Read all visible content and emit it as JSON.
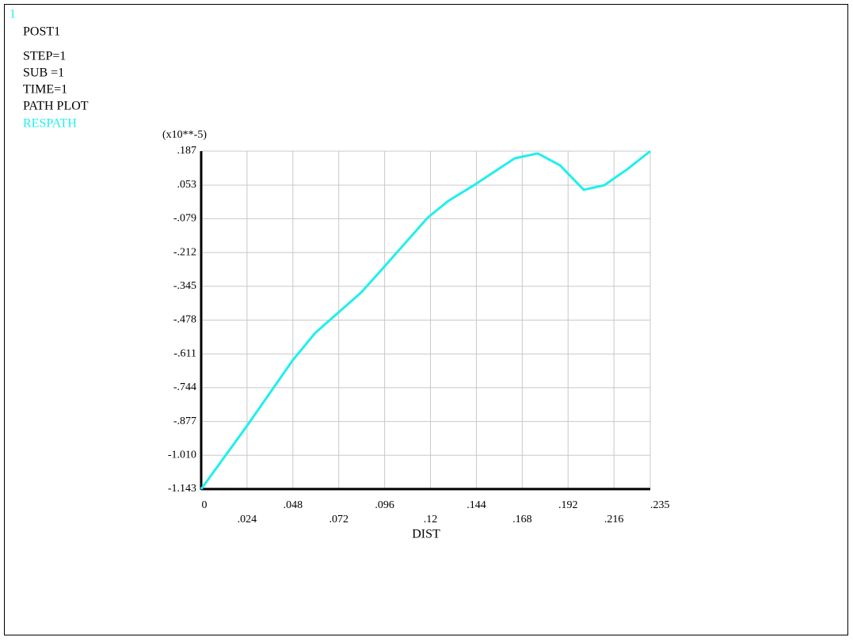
{
  "chart_data": {
    "type": "line",
    "window_label": "1",
    "title": "POST1",
    "annotations": [
      "STEP=1",
      "SUB =1",
      "TIME=1",
      "PATH PLOT"
    ],
    "y_multiplier": "(x10**-5)",
    "xlabel": "DIST",
    "x": [
      0,
      0.024,
      0.048,
      0.0596,
      0.0836,
      0.0958,
      0.1185,
      0.1293,
      0.1434,
      0.1641,
      0.1762,
      0.1878,
      0.2002,
      0.211,
      0.223,
      0.235
    ],
    "series": [
      {
        "name": "RESPATH",
        "color": "#22eeee",
        "values": [
          -1.143,
          -0.894,
          -0.635,
          -0.529,
          -0.37,
          -0.268,
          -0.075,
          -0.009,
          0.056,
          0.159,
          0.178,
          0.131,
          0.035,
          0.053,
          0.116,
          0.187
        ]
      }
    ],
    "xlim": [
      0,
      0.235
    ],
    "ylim": [
      -1.143,
      0.187
    ],
    "xticks": [
      0,
      {
        "value": 0.024,
        "label": ".024"
      },
      {
        "value": 0.048,
        "label": ".048"
      },
      {
        "value": 0.072,
        "label": ".072"
      },
      {
        "value": 0.096,
        "label": ".096"
      },
      {
        "value": 0.12,
        "label": ".12"
      },
      {
        "value": 0.144,
        "label": ".144"
      },
      {
        "value": 0.168,
        "label": ".168"
      },
      {
        "value": 0.192,
        "label": ".192"
      },
      {
        "value": 0.216,
        "label": ".216"
      },
      {
        "value": 0.235,
        "label": ".235"
      }
    ],
    "yticks": [
      {
        "value": 0.187,
        "label": ".187"
      },
      {
        "value": 0.053,
        "label": ".053"
      },
      {
        "value": -0.079,
        "label": "-.079"
      },
      {
        "value": -0.212,
        "label": "-.212"
      },
      {
        "value": -0.345,
        "label": "-.345"
      },
      {
        "value": -0.478,
        "label": "-.478"
      },
      {
        "value": -0.611,
        "label": "-.611"
      },
      {
        "value": -0.744,
        "label": "-.744"
      },
      {
        "value": -0.877,
        "label": "-.877"
      },
      {
        "value": -1.01,
        "label": "-1.010"
      },
      -1.143
    ],
    "grid": true
  }
}
